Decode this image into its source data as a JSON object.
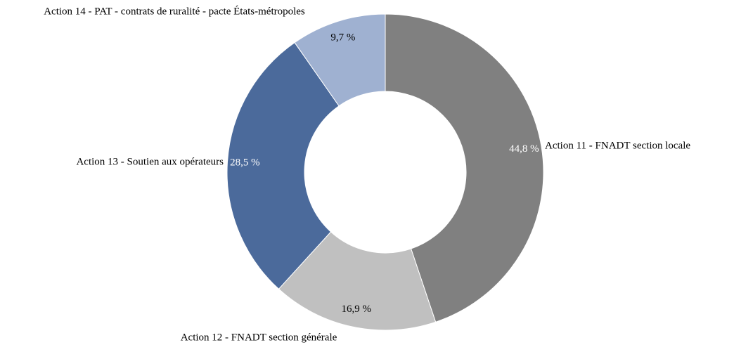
{
  "chart_data": {
    "type": "pie",
    "categories": [
      "Action 11 - FNADT section locale",
      "Action 12 - FNADT section générale",
      "Action 13 - Soutien aux opérateurs",
      "Action 14 - PAT - contrats de ruralité - pacte États-métropoles"
    ],
    "values": [
      44.8,
      16.9,
      28.5,
      9.7
    ],
    "value_labels": [
      "44,8 %",
      "16,9 %",
      "28,5 %",
      "9,7 %"
    ],
    "colors": [
      "#808080",
      "#c0c0c0",
      "#4b6a9b",
      "#9fb1d1"
    ]
  }
}
